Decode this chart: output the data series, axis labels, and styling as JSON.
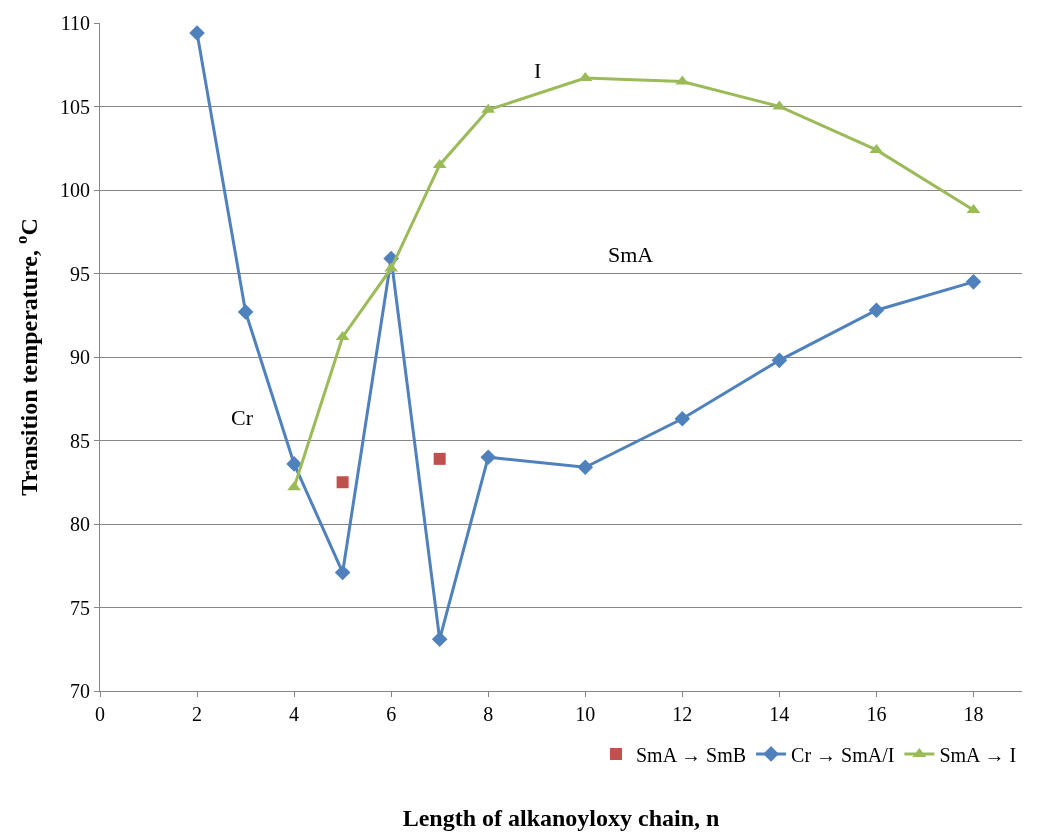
{
  "chart_data": {
    "type": "line",
    "xlabel": "Length of alkanoyloxy chain, n",
    "ylabel": "Transition temperature, $^{o}$C",
    "xlim": [
      0,
      19
    ],
    "xticks": [
      0,
      2,
      4,
      6,
      8,
      10,
      12,
      14,
      16,
      18
    ],
    "ylim": [
      70,
      110
    ],
    "yticks": [
      70,
      75,
      80,
      85,
      90,
      95,
      100,
      105,
      110
    ],
    "grid": "y",
    "legend": "bottom",
    "series": [
      {
        "name": "SmA → SmB",
        "type": "scatter",
        "marker": "square",
        "color": "#c0504d",
        "x": [
          5,
          7
        ],
        "values": [
          82.5,
          83.9
        ]
      },
      {
        "name": "Cr → SmA/I",
        "marker": "diamond",
        "color": "#4f81bd",
        "x": [
          2,
          3,
          4,
          5,
          6,
          7,
          8,
          10,
          12,
          14,
          16,
          18
        ],
        "values": [
          109.4,
          92.7,
          83.6,
          77.1,
          95.9,
          73.1,
          84.0,
          83.4,
          86.3,
          89.8,
          92.8,
          94.5
        ]
      },
      {
        "name": "SmA → I",
        "marker": "triangle",
        "color": "#9bbb59",
        "x": [
          4,
          5,
          6,
          7,
          8,
          10,
          12,
          14,
          16,
          18
        ],
        "values": [
          82.2,
          91.2,
          95.3,
          101.5,
          104.8,
          106.7,
          106.5,
          105.0,
          102.4,
          98.8
        ]
      }
    ],
    "annotations": [
      "I",
      "SmA",
      "Cr"
    ]
  }
}
